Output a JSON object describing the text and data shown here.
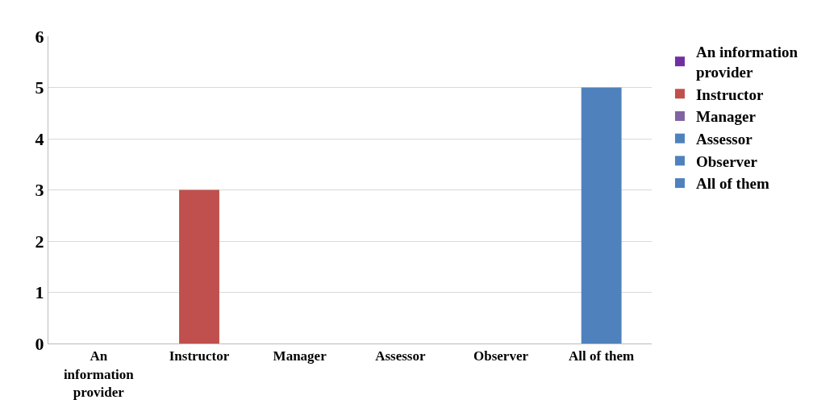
{
  "chart_data": {
    "type": "bar",
    "categories": [
      "An information provider",
      "Instructor",
      "Manager",
      "Assessor",
      "Observer",
      "All of them"
    ],
    "series": [
      {
        "name": "An information provider",
        "color": "#7030a0",
        "values": [
          0,
          null,
          null,
          null,
          null,
          null
        ]
      },
      {
        "name": "Instructor",
        "color": "#c0504d",
        "values": [
          null,
          3,
          null,
          null,
          null,
          null
        ]
      },
      {
        "name": "Manager",
        "color": "#8064a2",
        "values": [
          null,
          null,
          0,
          null,
          null,
          null
        ]
      },
      {
        "name": "Assessor",
        "color": "#4f81bd",
        "values": [
          null,
          null,
          null,
          0,
          null,
          null
        ]
      },
      {
        "name": "Observer",
        "color": "#4f81bd",
        "values": [
          null,
          null,
          null,
          null,
          0,
          null
        ]
      },
      {
        "name": "All of them",
        "color": "#4f81bd",
        "values": [
          null,
          null,
          null,
          null,
          null,
          5
        ]
      }
    ],
    "ylim": [
      0,
      6
    ],
    "yticks": [
      0,
      1,
      2,
      3,
      4,
      5,
      6
    ],
    "grid": "y",
    "legend": "right"
  }
}
